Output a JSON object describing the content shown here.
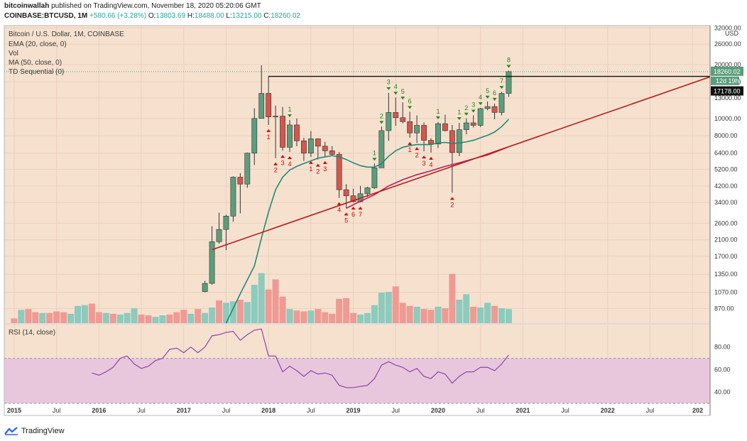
{
  "header": {
    "line1_author": "bitcoinwallah",
    "line1_rest": "published on TradingView.com, November 18, 2020 05:20:06 GMT",
    "symbol": "COINBASE:BTCUSD, 1M",
    "change": "+580.66 (+3.28%)",
    "o_label": "O:",
    "o_value": "13803.69",
    "h_label": "H:",
    "h_value": "18488.00",
    "l_label": "L:",
    "l_value": "13215.00",
    "c_label": "C:",
    "c_value": "18260.02"
  },
  "legend": {
    "title": "Bitcoin / U.S. Dollar, 1M, COINBASE",
    "ema": "EMA (20, close, 0)",
    "vol": "Vol",
    "ma": "MA (50, close, 0)",
    "td": "TD Sequential (0)",
    "rsi": "RSI (14, close)"
  },
  "price_axis": {
    "currency": "USD",
    "ticks": [
      "32000.00",
      "26000.00",
      "20000.00",
      "16000.00",
      "13000.00",
      "10000.00",
      "8000.00",
      "6400.00",
      "5200.00",
      "4200.00",
      "3400.00",
      "2600.00",
      "2100.00",
      "1700.00",
      "1350.00",
      "1070.00",
      "870.00"
    ],
    "last_price": "18260.02",
    "countdown": "12d 19h",
    "level_price": "17178.00"
  },
  "rsi_axis": {
    "ticks": [
      "80.00",
      "60.00",
      "40.00"
    ]
  },
  "time_axis": {
    "labels": [
      "2015",
      "Jul",
      "2016",
      "Jul",
      "2017",
      "Jul",
      "2018",
      "Jul",
      "2019",
      "Jul",
      "2020",
      "Jul",
      "2021",
      "Jul",
      "2022",
      "Jul",
      "202"
    ]
  },
  "colors": {
    "up": "#5b9d7c",
    "down": "#d3574d",
    "volume_up": "#8ccbbd",
    "volume_down": "#ef9a93",
    "ema": "#1f8a7a",
    "ma": "#c2185b",
    "trendline": "#b71c1c",
    "rsi": "#8e44ad",
    "rsi_band": "#e8c7dd",
    "background": "#f6e1cf",
    "td_buy": "#d50000",
    "td_sell": "#1b8a1b"
  },
  "brand": {
    "name": "TradingView"
  },
  "chart_data": {
    "type": "candlestick",
    "scale": "log",
    "ylim": [
      720,
      33000
    ],
    "grid": true,
    "x_start": "2014-12",
    "candles": [
      {
        "d": "2017-04",
        "o": 1080,
        "h": 1240,
        "l": 1070,
        "c": 1200
      },
      {
        "d": "2017-05",
        "o": 1200,
        "h": 2500,
        "l": 1180,
        "c": 2050
      },
      {
        "d": "2017-06",
        "o": 2050,
        "h": 2980,
        "l": 2000,
        "c": 2400
      },
      {
        "d": "2017-07",
        "o": 2400,
        "h": 2900,
        "l": 1840,
        "c": 2850
      },
      {
        "d": "2017-08",
        "o": 2850,
        "h": 4750,
        "l": 2650,
        "c": 4700
      },
      {
        "d": "2017-09",
        "o": 4700,
        "h": 4950,
        "l": 2950,
        "c": 4300
      },
      {
        "d": "2017-10",
        "o": 4300,
        "h": 6450,
        "l": 4100,
        "c": 6400
      },
      {
        "d": "2017-11",
        "o": 6400,
        "h": 11400,
        "l": 5500,
        "c": 10000
      },
      {
        "d": "2017-12",
        "o": 10000,
        "h": 19800,
        "l": 10000,
        "c": 13800
      },
      {
        "d": "2018-01",
        "o": 13800,
        "h": 17200,
        "l": 9200,
        "c": 10200
      },
      {
        "d": "2018-02",
        "o": 10200,
        "h": 11800,
        "l": 6000,
        "c": 10300
      },
      {
        "d": "2018-03",
        "o": 10300,
        "h": 11600,
        "l": 6600,
        "c": 6900
      },
      {
        "d": "2018-04",
        "o": 6900,
        "h": 9800,
        "l": 6500,
        "c": 9200
      },
      {
        "d": "2018-05",
        "o": 9200,
        "h": 10000,
        "l": 7000,
        "c": 7500
      },
      {
        "d": "2018-06",
        "o": 7500,
        "h": 7800,
        "l": 5800,
        "c": 6400
      },
      {
        "d": "2018-07",
        "o": 6400,
        "h": 8500,
        "l": 6100,
        "c": 7700
      },
      {
        "d": "2018-08",
        "o": 7700,
        "h": 7750,
        "l": 5900,
        "c": 7000
      },
      {
        "d": "2018-09",
        "o": 7000,
        "h": 7400,
        "l": 6100,
        "c": 6600
      },
      {
        "d": "2018-10",
        "o": 6600,
        "h": 7000,
        "l": 6200,
        "c": 6300
      },
      {
        "d": "2018-11",
        "o": 6300,
        "h": 6500,
        "l": 3600,
        "c": 4000
      },
      {
        "d": "2018-12",
        "o": 4000,
        "h": 4300,
        "l": 3150,
        "c": 3700
      },
      {
        "d": "2019-01",
        "o": 3700,
        "h": 4050,
        "l": 3400,
        "c": 3430
      },
      {
        "d": "2019-02",
        "o": 3430,
        "h": 4200,
        "l": 3400,
        "c": 3800
      },
      {
        "d": "2019-03",
        "o": 3800,
        "h": 4150,
        "l": 3650,
        "c": 4100
      },
      {
        "d": "2019-04",
        "o": 4100,
        "h": 5600,
        "l": 4050,
        "c": 5300
      },
      {
        "d": "2019-05",
        "o": 5300,
        "h": 9000,
        "l": 5300,
        "c": 8550
      },
      {
        "d": "2019-06",
        "o": 8550,
        "h": 13900,
        "l": 7500,
        "c": 10800
      },
      {
        "d": "2019-07",
        "o": 10800,
        "h": 13100,
        "l": 9100,
        "c": 10100
      },
      {
        "d": "2019-08",
        "o": 10100,
        "h": 12300,
        "l": 9400,
        "c": 9600
      },
      {
        "d": "2019-09",
        "o": 9600,
        "h": 10900,
        "l": 7800,
        "c": 8300
      },
      {
        "d": "2019-10",
        "o": 8300,
        "h": 10400,
        "l": 7300,
        "c": 9150
      },
      {
        "d": "2019-11",
        "o": 9150,
        "h": 9500,
        "l": 6550,
        "c": 7550
      },
      {
        "d": "2019-12",
        "o": 7550,
        "h": 7750,
        "l": 6450,
        "c": 7200
      },
      {
        "d": "2020-01",
        "o": 7200,
        "h": 9550,
        "l": 6850,
        "c": 9350
      },
      {
        "d": "2020-02",
        "o": 9350,
        "h": 10500,
        "l": 8450,
        "c": 8550
      },
      {
        "d": "2020-03",
        "o": 8550,
        "h": 9200,
        "l": 3850,
        "c": 6450
      },
      {
        "d": "2020-04",
        "o": 6450,
        "h": 9450,
        "l": 6150,
        "c": 8650
      },
      {
        "d": "2020-05",
        "o": 8650,
        "h": 10000,
        "l": 8150,
        "c": 9450
      },
      {
        "d": "2020-06",
        "o": 9450,
        "h": 10400,
        "l": 8900,
        "c": 9150
      },
      {
        "d": "2020-07",
        "o": 9150,
        "h": 11450,
        "l": 8950,
        "c": 11350
      },
      {
        "d": "2020-08",
        "o": 11350,
        "h": 12450,
        "l": 11100,
        "c": 11650
      },
      {
        "d": "2020-09",
        "o": 11650,
        "h": 12100,
        "l": 9900,
        "c": 10800
      },
      {
        "d": "2020-10",
        "o": 10800,
        "h": 14100,
        "l": 10400,
        "c": 13800
      },
      {
        "d": "2020-11",
        "o": 13803.69,
        "h": 18488,
        "l": 13215,
        "c": 18260.02
      }
    ],
    "ema20": [
      [
        "2017-07",
        720
      ],
      [
        "2017-09",
        1050
      ],
      [
        "2017-11",
        1500
      ],
      [
        "2017-12",
        2150
      ],
      [
        "2018-01",
        3000
      ],
      [
        "2018-02",
        4000
      ],
      [
        "2018-03",
        4700
      ],
      [
        "2018-04",
        5150
      ],
      [
        "2018-05",
        5400
      ],
      [
        "2018-06",
        5600
      ],
      [
        "2018-07",
        5800
      ],
      [
        "2018-08",
        6000
      ],
      [
        "2018-09",
        6100
      ],
      [
        "2018-10",
        6200
      ],
      [
        "2018-11",
        6100
      ],
      [
        "2018-12",
        5900
      ],
      [
        "2019-01",
        5650
      ],
      [
        "2019-02",
        5450
      ],
      [
        "2019-03",
        5350
      ],
      [
        "2019-04",
        5350
      ],
      [
        "2019-05",
        5600
      ],
      [
        "2019-06",
        6150
      ],
      [
        "2019-07",
        6600
      ],
      [
        "2019-08",
        6900
      ],
      [
        "2019-09",
        7050
      ],
      [
        "2019-10",
        7150
      ],
      [
        "2019-11",
        7150
      ],
      [
        "2019-12",
        7150
      ],
      [
        "2020-01",
        7300
      ],
      [
        "2020-02",
        7350
      ],
      [
        "2020-03",
        7250
      ],
      [
        "2020-04",
        7300
      ],
      [
        "2020-05",
        7400
      ],
      [
        "2020-06",
        7550
      ],
      [
        "2020-07",
        7800
      ],
      [
        "2020-08",
        8050
      ],
      [
        "2020-09",
        8400
      ],
      [
        "2020-10",
        9000
      ],
      [
        "2020-11",
        9900
      ]
    ],
    "ma50": [
      [
        "2018-12",
        3150
      ],
      [
        "2019-02",
        3450
      ],
      [
        "2019-04",
        3750
      ],
      [
        "2019-06",
        4200
      ],
      [
        "2019-08",
        4550
      ],
      [
        "2019-10",
        4850
      ],
      [
        "2019-12",
        5100
      ],
      [
        "2020-02",
        5400
      ],
      [
        "2020-04",
        5650
      ],
      [
        "2020-06",
        5950
      ],
      [
        "2020-08",
        6250
      ],
      [
        "2020-10",
        6700
      ],
      [
        "2020-11",
        6950
      ]
    ],
    "trendline": [
      [
        "2017-05",
        1850
      ],
      [
        "2020-11",
        6950
      ]
    ],
    "resistance": {
      "from": "2018-01",
      "value": 17178
    },
    "volume": [
      [
        "2015-01",
        6,
        "d"
      ],
      [
        "2015-02",
        17,
        "u"
      ],
      [
        "2015-03",
        18,
        "d"
      ],
      [
        "2015-04",
        14,
        "d"
      ],
      [
        "2015-05",
        13,
        "u"
      ],
      [
        "2015-06",
        13,
        "d"
      ],
      [
        "2015-07",
        15,
        "d"
      ],
      [
        "2015-08",
        14,
        "d"
      ],
      [
        "2015-09",
        12,
        "u"
      ],
      [
        "2015-10",
        22,
        "u"
      ],
      [
        "2015-11",
        23,
        "u"
      ],
      [
        "2015-12",
        25,
        "d"
      ],
      [
        "2016-01",
        14,
        "d"
      ],
      [
        "2016-02",
        13,
        "u"
      ],
      [
        "2016-03",
        12,
        "d"
      ],
      [
        "2016-04",
        11,
        "u"
      ],
      [
        "2016-05",
        13,
        "u"
      ],
      [
        "2016-06",
        19,
        "u"
      ],
      [
        "2016-07",
        11,
        "d"
      ],
      [
        "2016-08",
        10,
        "d"
      ],
      [
        "2016-09",
        8,
        "u"
      ],
      [
        "2016-10",
        10,
        "u"
      ],
      [
        "2016-11",
        11,
        "d"
      ],
      [
        "2016-12",
        14,
        "d"
      ],
      [
        "2017-01",
        17,
        "d"
      ],
      [
        "2017-02",
        12,
        "u"
      ],
      [
        "2017-03",
        18,
        "d"
      ],
      [
        "2017-04",
        13,
        "u"
      ],
      [
        "2017-05",
        20,
        "u"
      ],
      [
        "2017-06",
        29,
        "d"
      ],
      [
        "2017-07",
        26,
        "u"
      ],
      [
        "2017-08",
        28,
        "u"
      ],
      [
        "2017-09",
        30,
        "d"
      ],
      [
        "2017-10",
        27,
        "u"
      ],
      [
        "2017-11",
        49,
        "u"
      ],
      [
        "2017-12",
        64,
        "u"
      ],
      [
        "2018-01",
        43,
        "d"
      ],
      [
        "2018-02",
        56,
        "d"
      ],
      [
        "2018-03",
        34,
        "d"
      ],
      [
        "2018-04",
        18,
        "u"
      ],
      [
        "2018-05",
        16,
        "d"
      ],
      [
        "2018-06",
        15,
        "d"
      ],
      [
        "2018-07",
        16,
        "u"
      ],
      [
        "2018-08",
        18,
        "d"
      ],
      [
        "2018-09",
        14,
        "d"
      ],
      [
        "2018-10",
        12,
        "d"
      ],
      [
        "2018-11",
        31,
        "d"
      ],
      [
        "2018-12",
        32,
        "d"
      ],
      [
        "2019-01",
        13,
        "d"
      ],
      [
        "2019-02",
        11,
        "u"
      ],
      [
        "2019-03",
        13,
        "u"
      ],
      [
        "2019-04",
        23,
        "u"
      ],
      [
        "2019-05",
        39,
        "u"
      ],
      [
        "2019-06",
        40,
        "u"
      ],
      [
        "2019-07",
        47,
        "d"
      ],
      [
        "2019-08",
        26,
        "d"
      ],
      [
        "2019-09",
        22,
        "d"
      ],
      [
        "2019-10",
        21,
        "u"
      ],
      [
        "2019-11",
        18,
        "d"
      ],
      [
        "2019-12",
        17,
        "d"
      ],
      [
        "2020-01",
        21,
        "u"
      ],
      [
        "2020-02",
        19,
        "d"
      ],
      [
        "2020-03",
        63,
        "d"
      ],
      [
        "2020-04",
        30,
        "u"
      ],
      [
        "2020-05",
        37,
        "u"
      ],
      [
        "2020-06",
        21,
        "d"
      ],
      [
        "2020-07",
        20,
        "u"
      ],
      [
        "2020-08",
        26,
        "u"
      ],
      [
        "2020-09",
        22,
        "d"
      ],
      [
        "2020-10",
        19,
        "u"
      ],
      [
        "2020-11",
        18,
        "u"
      ]
    ],
    "volume_unit": "percent of pane height",
    "td_sell_labels": [
      [
        "2018-04",
        "1"
      ],
      [
        "2019-05",
        "2"
      ],
      [
        "2019-06",
        "3"
      ],
      [
        "2019-07",
        "4"
      ],
      [
        "2019-08",
        "5"
      ],
      [
        "2019-09",
        "6"
      ],
      [
        "2020-01",
        "1"
      ],
      [
        "2020-04",
        "1"
      ],
      [
        "2020-05",
        "2"
      ],
      [
        "2020-06",
        "3"
      ],
      [
        "2020-07",
        "4"
      ],
      [
        "2020-08",
        "5"
      ],
      [
        "2020-09",
        "6"
      ],
      [
        "2020-10",
        "7"
      ],
      [
        "2020-11",
        "8"
      ],
      [
        "2019-04",
        "1"
      ]
    ],
    "td_buy_labels": [
      [
        "2018-01",
        "1"
      ],
      [
        "2018-02",
        "2"
      ],
      [
        "2018-03",
        "3"
      ],
      [
        "2018-04",
        "4"
      ],
      [
        "2018-07",
        "1"
      ],
      [
        "2018-08",
        "2"
      ],
      [
        "2018-09",
        "3"
      ],
      [
        "2018-11",
        "4"
      ],
      [
        "2018-12",
        "5"
      ],
      [
        "2019-01",
        "6"
      ],
      [
        "2019-02",
        "7"
      ],
      [
        "2019-09",
        "1"
      ],
      [
        "2019-10",
        "2"
      ],
      [
        "2019-11",
        "3"
      ],
      [
        "2019-12",
        "4"
      ],
      [
        "2020-03",
        "2"
      ]
    ],
    "rsi": [
      [
        "2015-12",
        57
      ],
      [
        "2016-01",
        55
      ],
      [
        "2016-02",
        58
      ],
      [
        "2016-03",
        62
      ],
      [
        "2016-04",
        70
      ],
      [
        "2016-05",
        72
      ],
      [
        "2016-06",
        65
      ],
      [
        "2016-07",
        61
      ],
      [
        "2016-08",
        63
      ],
      [
        "2016-09",
        68
      ],
      [
        "2016-10",
        70
      ],
      [
        "2016-11",
        78
      ],
      [
        "2016-12",
        79
      ],
      [
        "2017-01",
        75
      ],
      [
        "2017-02",
        80
      ],
      [
        "2017-03",
        75
      ],
      [
        "2017-04",
        80
      ],
      [
        "2017-05",
        90
      ],
      [
        "2017-06",
        91
      ],
      [
        "2017-07",
        93
      ],
      [
        "2017-08",
        94
      ],
      [
        "2017-09",
        86
      ],
      [
        "2017-10",
        91
      ],
      [
        "2017-11",
        95
      ],
      [
        "2017-12",
        96
      ],
      [
        "2018-01",
        72
      ],
      [
        "2018-02",
        72
      ],
      [
        "2018-03",
        58
      ],
      [
        "2018-04",
        63
      ],
      [
        "2018-05",
        59
      ],
      [
        "2018-06",
        54
      ],
      [
        "2018-07",
        59
      ],
      [
        "2018-08",
        56
      ],
      [
        "2018-09",
        57
      ],
      [
        "2018-10",
        55
      ],
      [
        "2018-11",
        46
      ],
      [
        "2018-12",
        44
      ],
      [
        "2019-01",
        44
      ],
      [
        "2019-02",
        45
      ],
      [
        "2019-03",
        46
      ],
      [
        "2019-04",
        52
      ],
      [
        "2019-05",
        64
      ],
      [
        "2019-06",
        67
      ],
      [
        "2019-07",
        64
      ],
      [
        "2019-08",
        62
      ],
      [
        "2019-09",
        58
      ],
      [
        "2019-10",
        61
      ],
      [
        "2019-11",
        54
      ],
      [
        "2019-12",
        52
      ],
      [
        "2020-01",
        58
      ],
      [
        "2020-02",
        56
      ],
      [
        "2020-03",
        48
      ],
      [
        "2020-04",
        54
      ],
      [
        "2020-05",
        58
      ],
      [
        "2020-06",
        58
      ],
      [
        "2020-07",
        62
      ],
      [
        "2020-08",
        62
      ],
      [
        "2020-09",
        59
      ],
      [
        "2020-10",
        65
      ],
      [
        "2020-11",
        73
      ]
    ],
    "rsi_range": [
      30,
      100
    ],
    "rsi_band": [
      30,
      70
    ]
  }
}
